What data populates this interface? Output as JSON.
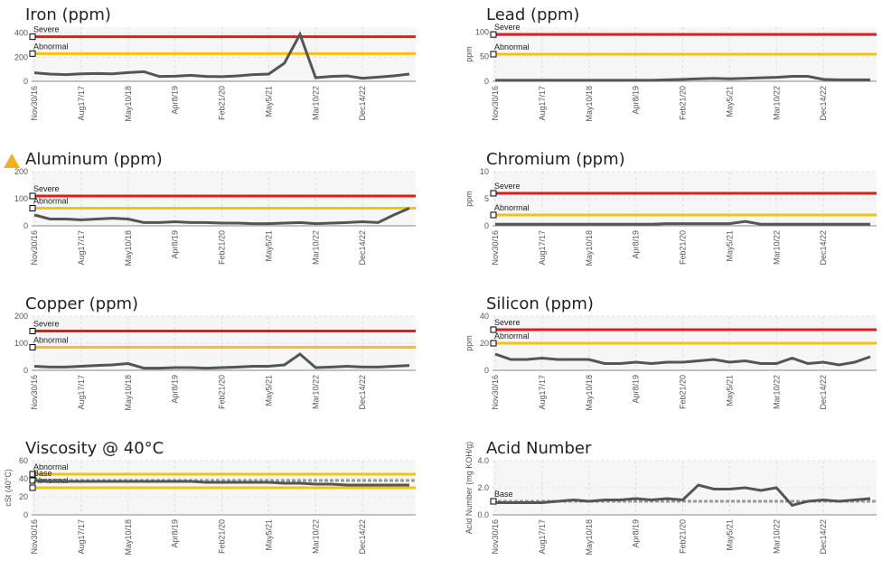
{
  "chart_data": [
    {
      "type": "line",
      "title": "Iron (ppm)",
      "categories": [
        "Nov30/16",
        null,
        null,
        "Aug17/17",
        null,
        null,
        "May10/18",
        null,
        null,
        "Apr8/19",
        null,
        null,
        "Feb21/20",
        null,
        null,
        "May5/21",
        null,
        null,
        "Mar10/22",
        null,
        null,
        "Dec14/22",
        null,
        null,
        null
      ],
      "values": [
        70,
        60,
        55,
        62,
        65,
        62,
        72,
        80,
        40,
        42,
        50,
        40,
        38,
        45,
        55,
        60,
        150,
        390,
        30,
        40,
        45,
        25,
        35,
        45,
        60
      ],
      "color": "#555555",
      "ylim": [
        0,
        450
      ],
      "yticks": [
        0,
        200,
        400
      ],
      "reference_lines": [
        {
          "label": "Severe",
          "value": 370,
          "color": "#e41b1b"
        },
        {
          "label": "Abnormal",
          "value": 230,
          "color": "#f2c311"
        }
      ]
    },
    {
      "type": "line",
      "title": "Lead (ppm)",
      "ylabel": "ppm",
      "categories": [
        "Nov30/16",
        null,
        null,
        "Aug17/17",
        null,
        null,
        "May10/18",
        null,
        null,
        "Apr8/19",
        null,
        null,
        "Feb21/20",
        null,
        null,
        "May5/21",
        null,
        null,
        "Mar10/22",
        null,
        null,
        "Dec14/22",
        null,
        null,
        null
      ],
      "values": [
        2,
        2,
        2,
        2,
        2,
        2,
        2,
        2,
        2,
        2,
        2,
        3,
        4,
        5,
        6,
        5,
        6,
        7,
        8,
        10,
        10,
        4,
        3,
        3,
        3
      ],
      "color": "#555555",
      "ylim": [
        0,
        110
      ],
      "yticks": [
        0,
        50,
        100
      ],
      "reference_lines": [
        {
          "label": "Severe",
          "value": 95,
          "color": "#e41b1b"
        },
        {
          "label": "Abnormal",
          "value": 55,
          "color": "#f2c311"
        }
      ]
    },
    {
      "type": "line",
      "title": "Aluminum (ppm)",
      "categories": [
        "Nov30/16",
        null,
        null,
        "Aug17/17",
        null,
        null,
        "May10/18",
        null,
        null,
        "Apr8/19",
        null,
        null,
        "Feb21/20",
        null,
        null,
        "May5/21",
        null,
        null,
        "Mar10/22",
        null,
        null,
        "Dec14/22",
        null,
        null,
        null
      ],
      "values": [
        40,
        25,
        25,
        22,
        25,
        28,
        25,
        12,
        12,
        15,
        12,
        12,
        10,
        10,
        8,
        8,
        10,
        12,
        8,
        10,
        12,
        15,
        12,
        40,
        65
      ],
      "color": "#555555",
      "ylim": [
        0,
        200
      ],
      "yticks": [
        0,
        100,
        200
      ],
      "reference_lines": [
        {
          "label": "Severe",
          "value": 110,
          "color": "#e41b1b"
        },
        {
          "label": "Abnormal",
          "value": 65,
          "color": "#f2c311"
        }
      ]
    },
    {
      "type": "line",
      "title": "Chromium (ppm)",
      "ylabel": "ppm",
      "categories": [
        "Nov30/16",
        null,
        null,
        "Aug17/17",
        null,
        null,
        "May10/18",
        null,
        null,
        "Apr8/19",
        null,
        null,
        "Feb21/20",
        null,
        null,
        "May5/21",
        null,
        null,
        "Mar10/22",
        null,
        null,
        "Dec14/22",
        null,
        null,
        null
      ],
      "values": [
        0.3,
        0.3,
        0.3,
        0.3,
        0.3,
        0.3,
        0.3,
        0.3,
        0.3,
        0.3,
        0.3,
        0.4,
        0.4,
        0.4,
        0.4,
        0.4,
        0.8,
        0.3,
        0.3,
        0.3,
        0.3,
        0.3,
        0.3,
        0.3,
        0.3
      ],
      "color": "#555555",
      "ylim": [
        0,
        10
      ],
      "yticks": [
        0,
        5,
        10
      ],
      "reference_lines": [
        {
          "label": "Severe",
          "value": 6,
          "color": "#e41b1b"
        },
        {
          "label": "Abnormal",
          "value": 2,
          "color": "#f2c311"
        }
      ]
    },
    {
      "type": "line",
      "title": "Copper (ppm)",
      "categories": [
        "Nov30/16",
        null,
        null,
        "Aug17/17",
        null,
        null,
        "May10/18",
        null,
        null,
        "Apr8/19",
        null,
        null,
        "Feb21/20",
        null,
        null,
        "May5/21",
        null,
        null,
        "Mar10/22",
        null,
        null,
        "Dec14/22",
        null,
        null,
        null
      ],
      "values": [
        15,
        12,
        12,
        15,
        18,
        20,
        25,
        8,
        8,
        10,
        10,
        8,
        10,
        12,
        15,
        15,
        20,
        60,
        10,
        12,
        15,
        12,
        12,
        15,
        18
      ],
      "color": "#555555",
      "ylim": [
        0,
        200
      ],
      "yticks": [
        0,
        100,
        200
      ],
      "reference_lines": [
        {
          "label": "Severe",
          "value": 145,
          "color": "#e41b1b"
        },
        {
          "label": "Abnormal",
          "value": 85,
          "color": "#f2c311"
        }
      ]
    },
    {
      "type": "line",
      "title": "Silicon (ppm)",
      "ylabel": "ppm",
      "categories": [
        "Nov30/16",
        null,
        null,
        "Aug17/17",
        null,
        null,
        "May10/18",
        null,
        null,
        "Apr8/19",
        null,
        null,
        "Feb21/20",
        null,
        null,
        "May5/21",
        null,
        null,
        "Mar10/22",
        null,
        null,
        "Dec14/22",
        null,
        null,
        null
      ],
      "values": [
        12,
        8,
        8,
        9,
        8,
        8,
        8,
        5,
        5,
        6,
        5,
        6,
        6,
        7,
        8,
        6,
        7,
        5,
        5,
        9,
        5,
        6,
        4,
        6,
        10
      ],
      "color": "#555555",
      "ylim": [
        0,
        40
      ],
      "yticks": [
        0,
        20,
        40
      ],
      "reference_lines": [
        {
          "label": "Severe",
          "value": 30,
          "color": "#e41b1b"
        },
        {
          "label": "Abnormal",
          "value": 20,
          "color": "#f2c311"
        }
      ]
    },
    {
      "type": "line",
      "title": "Viscosity @ 40°C",
      "ylabel": "cSt (40°C)",
      "categories": [
        "Nov30/16",
        null,
        null,
        "Aug17/17",
        null,
        null,
        "May10/18",
        null,
        null,
        "Apr8/19",
        null,
        null,
        "Feb21/20",
        null,
        null,
        "May5/21",
        null,
        null,
        "Mar10/22",
        null,
        null,
        "Dec14/22",
        null,
        null,
        null
      ],
      "values": [
        38,
        37,
        37,
        37,
        37,
        37,
        37,
        37,
        37,
        37,
        37,
        36,
        36,
        36,
        36,
        36,
        35,
        35,
        34,
        34,
        33,
        33,
        33,
        33,
        33
      ],
      "color": "#555555",
      "ylim": [
        0,
        60
      ],
      "yticks": [
        0,
        20,
        40,
        60
      ],
      "reference_lines": [
        {
          "label": "Abnormal",
          "value": 45,
          "color": "#f2c311"
        },
        {
          "label": "Base",
          "value": 38,
          "color": "#999999"
        },
        {
          "label": "Abnormal",
          "value": 30,
          "color": "#f2c311"
        }
      ]
    },
    {
      "type": "line",
      "title": "Acid Number",
      "ylabel": "Acid Number (mg KOH/g)",
      "categories": [
        "Nov30/16",
        null,
        null,
        "Aug17/17",
        null,
        null,
        "May10/18",
        null,
        null,
        "Apr8/19",
        null,
        null,
        "Feb21/20",
        null,
        null,
        "May5/21",
        null,
        null,
        "Mar10/22",
        null,
        null,
        "Dec14/22",
        null,
        null,
        null
      ],
      "values": [
        0.9,
        0.9,
        0.9,
        0.9,
        1.0,
        1.1,
        1.0,
        1.1,
        1.1,
        1.2,
        1.1,
        1.2,
        1.1,
        2.2,
        1.9,
        1.9,
        2.0,
        1.8,
        2.0,
        0.7,
        1.0,
        1.1,
        1.0,
        1.1,
        1.2
      ],
      "color": "#555555",
      "ylim": [
        0,
        4
      ],
      "yticks": [
        {
          "value": 0,
          "label": "0.0"
        },
        {
          "value": 2,
          "label": "2.0"
        },
        {
          "value": 4,
          "label": "4.0"
        }
      ],
      "reference_lines": [
        {
          "label": "Base",
          "value": 1,
          "color": "#999999"
        }
      ]
    }
  ]
}
